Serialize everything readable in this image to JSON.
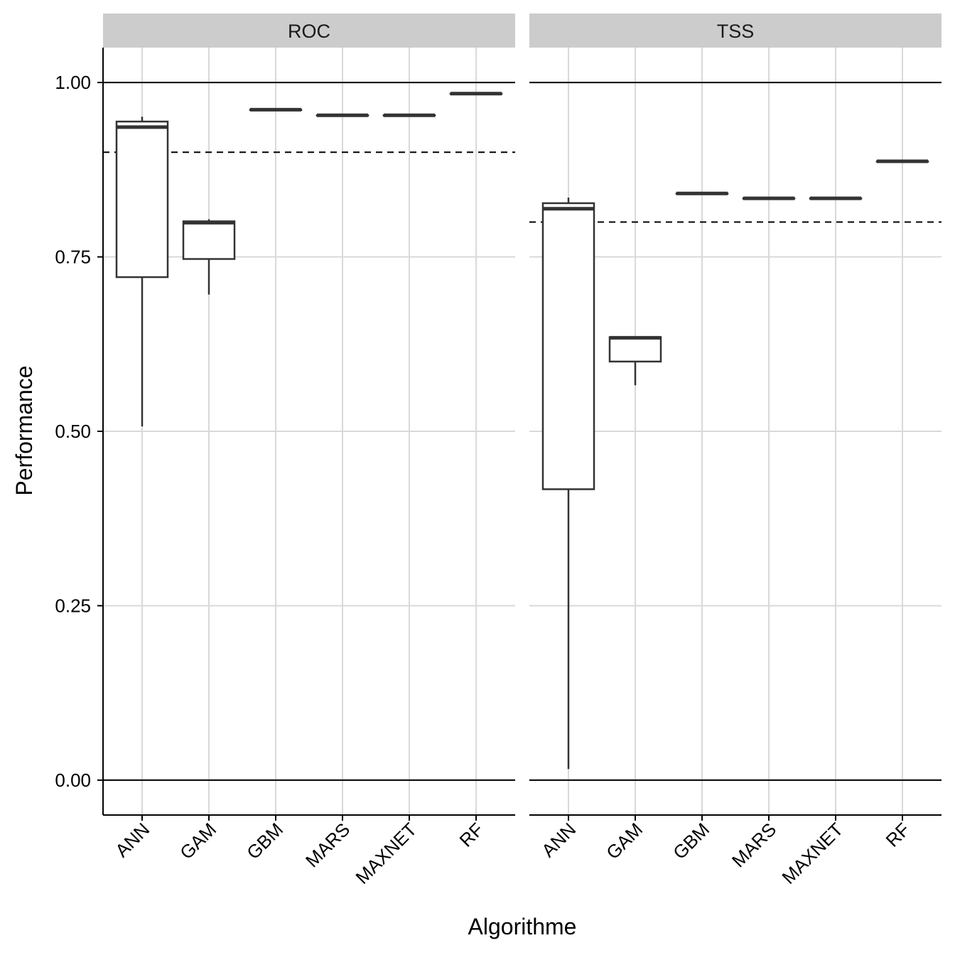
{
  "chart_data": {
    "type": "boxplot",
    "facets": [
      "ROC",
      "TSS"
    ],
    "categories": [
      "ANN",
      "GAM",
      "GBM",
      "MARS",
      "MAXNET",
      "RF"
    ],
    "xlabel": "Algorithme",
    "ylabel": "Performance",
    "ylim": [
      -0.05,
      1.05
    ],
    "yticks": [
      0.0,
      0.25,
      0.5,
      0.75,
      1.0
    ],
    "ytick_labels": [
      "0.00",
      "0.25",
      "0.50",
      "0.75",
      "1.00"
    ],
    "reference_lines": {
      "solid": [
        0.0,
        1.0
      ],
      "dashed": {
        "ROC": 0.9,
        "TSS": 0.8
      }
    },
    "grid": "major",
    "boxes": {
      "ROC": [
        {
          "category": "ANN",
          "min": 0.507,
          "q1": 0.721,
          "median": 0.936,
          "q3": 0.944,
          "max": 0.951
        },
        {
          "category": "GAM",
          "min": 0.696,
          "q1": 0.747,
          "median": 0.799,
          "q3": 0.801,
          "max": 0.804
        },
        {
          "category": "GBM",
          "min": 0.961,
          "q1": 0.961,
          "median": 0.961,
          "q3": 0.961,
          "max": 0.961
        },
        {
          "category": "MARS",
          "min": 0.953,
          "q1": 0.953,
          "median": 0.953,
          "q3": 0.953,
          "max": 0.953
        },
        {
          "category": "MAXNET",
          "min": 0.953,
          "q1": 0.953,
          "median": 0.953,
          "q3": 0.953,
          "max": 0.953
        },
        {
          "category": "RF",
          "min": 0.984,
          "q1": 0.984,
          "median": 0.984,
          "q3": 0.984,
          "max": 0.984
        }
      ],
      "TSS": [
        {
          "category": "ANN",
          "min": 0.016,
          "q1": 0.417,
          "median": 0.819,
          "q3": 0.827,
          "max": 0.835
        },
        {
          "category": "GAM",
          "min": 0.566,
          "q1": 0.6,
          "median": 0.634,
          "q3": 0.635,
          "max": 0.636
        },
        {
          "category": "GBM",
          "min": 0.841,
          "q1": 0.841,
          "median": 0.841,
          "q3": 0.841,
          "max": 0.841
        },
        {
          "category": "MARS",
          "min": 0.834,
          "q1": 0.834,
          "median": 0.834,
          "q3": 0.834,
          "max": 0.834
        },
        {
          "category": "MAXNET",
          "min": 0.834,
          "q1": 0.834,
          "median": 0.834,
          "q3": 0.834,
          "max": 0.834
        },
        {
          "category": "RF",
          "min": 0.887,
          "q1": 0.887,
          "median": 0.887,
          "q3": 0.887,
          "max": 0.887
        }
      ]
    },
    "colors": {
      "box_line": "#333333",
      "grid": "#d9d9d9",
      "strip_bg": "#cccccc",
      "axis": "#000000",
      "background": "#ffffff"
    }
  }
}
